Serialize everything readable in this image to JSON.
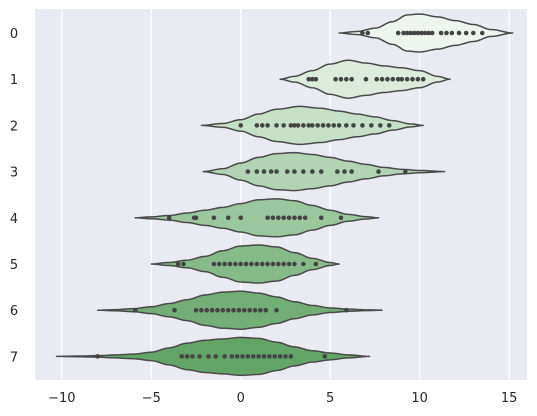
{
  "chart_data": {
    "type": "violin",
    "orientation": "horizontal",
    "inner": "point",
    "title": "",
    "xlabel": "",
    "ylabel": "",
    "xlim": [
      -11.5,
      16.0
    ],
    "xticks": [
      -10,
      -5,
      0,
      5,
      10,
      15
    ],
    "xtick_labels": [
      "−10",
      "−5",
      "0",
      "5",
      "10",
      "15"
    ],
    "grid": true,
    "categories": [
      "0",
      "1",
      "2",
      "3",
      "4",
      "5",
      "6",
      "7"
    ],
    "colors": {
      "background": "#eaeaf2",
      "grid": "#ffffff",
      "edge": "#4a4a4a",
      "points": "#444444",
      "fills": [
        "#eef4ee",
        "#dcebdc",
        "#c7e0c8",
        "#b2d4b4",
        "#9bc79e",
        "#86bb89",
        "#72ae76",
        "#62a566"
      ]
    },
    "series": [
      {
        "category": "0",
        "range": [
          5.5,
          15.2
        ],
        "profile": [
          [
            5.5,
            0.0
          ],
          [
            6.5,
            0.08
          ],
          [
            7.5,
            0.25
          ],
          [
            8.5,
            0.6
          ],
          [
            9.3,
            0.95
          ],
          [
            10.0,
            1.0
          ],
          [
            11.0,
            0.85
          ],
          [
            12.0,
            0.65
          ],
          [
            13.0,
            0.45
          ],
          [
            14.0,
            0.18
          ],
          [
            15.2,
            0.0
          ]
        ],
        "points": [
          6.8,
          7.1,
          8.8,
          9.1,
          9.3,
          9.5,
          9.7,
          9.9,
          10.1,
          10.3,
          10.5,
          10.7,
          11.2,
          11.5,
          11.8,
          12.2,
          12.6,
          13.0,
          13.5
        ]
      },
      {
        "category": "1",
        "range": [
          2.2,
          11.7
        ],
        "profile": [
          [
            2.2,
            0.0
          ],
          [
            3.0,
            0.15
          ],
          [
            4.0,
            0.45
          ],
          [
            5.0,
            0.8
          ],
          [
            6.0,
            1.0
          ],
          [
            7.0,
            0.85
          ],
          [
            8.0,
            0.7
          ],
          [
            9.0,
            0.6
          ],
          [
            10.0,
            0.45
          ],
          [
            11.0,
            0.15
          ],
          [
            11.7,
            0.0
          ]
        ],
        "points": [
          3.8,
          4.0,
          4.2,
          5.3,
          5.6,
          5.9,
          6.2,
          7.0,
          7.6,
          7.9,
          8.2,
          8.5,
          8.8,
          9.0,
          9.3,
          9.6,
          9.9,
          10.2
        ]
      },
      {
        "category": "2",
        "range": [
          -2.2,
          10.2
        ],
        "profile": [
          [
            -2.2,
            0.0
          ],
          [
            -1.0,
            0.1
          ],
          [
            0.0,
            0.3
          ],
          [
            1.0,
            0.6
          ],
          [
            2.0,
            0.85
          ],
          [
            3.3,
            1.0
          ],
          [
            4.5,
            0.9
          ],
          [
            5.5,
            0.75
          ],
          [
            6.5,
            0.6
          ],
          [
            7.5,
            0.45
          ],
          [
            8.5,
            0.25
          ],
          [
            9.5,
            0.08
          ],
          [
            10.2,
            0.0
          ]
        ],
        "points": [
          0.0,
          0.9,
          1.2,
          1.5,
          2.0,
          2.4,
          2.8,
          3.0,
          3.2,
          3.5,
          3.8,
          4.0,
          4.3,
          4.6,
          4.9,
          5.2,
          5.5,
          5.9,
          6.3,
          6.8,
          7.3,
          7.8,
          8.3
        ]
      },
      {
        "category": "3",
        "range": [
          -2.1,
          11.4
        ],
        "profile": [
          [
            -2.1,
            0.0
          ],
          [
            -1.0,
            0.15
          ],
          [
            0.0,
            0.45
          ],
          [
            1.0,
            0.75
          ],
          [
            2.0,
            0.95
          ],
          [
            3.0,
            1.0
          ],
          [
            4.0,
            0.9
          ],
          [
            5.0,
            0.75
          ],
          [
            6.0,
            0.55
          ],
          [
            7.0,
            0.38
          ],
          [
            8.0,
            0.22
          ],
          [
            9.0,
            0.12
          ],
          [
            10.0,
            0.06
          ],
          [
            11.4,
            0.0
          ]
        ],
        "points": [
          0.4,
          0.9,
          1.3,
          1.7,
          2.0,
          2.6,
          3.0,
          3.5,
          4.0,
          4.5,
          5.4,
          5.8,
          6.2,
          7.7,
          9.2
        ]
      },
      {
        "category": "4",
        "range": [
          -5.9,
          7.7
        ],
        "profile": [
          [
            -5.9,
            0.0
          ],
          [
            -5.0,
            0.05
          ],
          [
            -4.0,
            0.12
          ],
          [
            -3.0,
            0.25
          ],
          [
            -2.0,
            0.4
          ],
          [
            -1.0,
            0.55
          ],
          [
            0.0,
            0.75
          ],
          [
            1.0,
            0.95
          ],
          [
            2.0,
            1.0
          ],
          [
            3.0,
            0.9
          ],
          [
            4.0,
            0.65
          ],
          [
            5.0,
            0.4
          ],
          [
            6.0,
            0.18
          ],
          [
            7.0,
            0.06
          ],
          [
            7.7,
            0.0
          ]
        ],
        "points": [
          -4.0,
          -2.6,
          -2.5,
          -1.5,
          -0.7,
          0.0,
          1.5,
          1.8,
          2.1,
          2.4,
          2.7,
          3.0,
          3.3,
          3.6,
          4.5,
          5.6
        ]
      },
      {
        "category": "5",
        "range": [
          -5.0,
          5.5
        ],
        "profile": [
          [
            -5.0,
            0.0
          ],
          [
            -4.0,
            0.08
          ],
          [
            -3.0,
            0.2
          ],
          [
            -2.0,
            0.4
          ],
          [
            -1.0,
            0.7
          ],
          [
            0.0,
            0.95
          ],
          [
            1.0,
            1.0
          ],
          [
            2.0,
            0.9
          ],
          [
            3.0,
            0.6
          ],
          [
            4.0,
            0.3
          ],
          [
            5.0,
            0.08
          ],
          [
            5.5,
            0.0
          ]
        ],
        "points": [
          -3.5,
          -3.2,
          -1.5,
          -1.2,
          -0.9,
          -0.6,
          -0.3,
          0.0,
          0.3,
          0.6,
          0.9,
          1.2,
          1.5,
          1.8,
          2.1,
          2.4,
          2.7,
          3.0,
          3.5,
          4.2
        ]
      },
      {
        "category": "6",
        "range": [
          -8.0,
          7.9
        ],
        "profile": [
          [
            -8.0,
            0.0
          ],
          [
            -7.0,
            0.03
          ],
          [
            -6.0,
            0.08
          ],
          [
            -5.0,
            0.18
          ],
          [
            -4.0,
            0.35
          ],
          [
            -3.0,
            0.55
          ],
          [
            -2.0,
            0.8
          ],
          [
            -1.0,
            0.95
          ],
          [
            0.0,
            1.0
          ],
          [
            1.0,
            0.9
          ],
          [
            2.0,
            0.7
          ],
          [
            3.0,
            0.45
          ],
          [
            4.0,
            0.25
          ],
          [
            5.0,
            0.12
          ],
          [
            6.0,
            0.06
          ],
          [
            7.0,
            0.02
          ],
          [
            7.9,
            0.0
          ]
        ],
        "points": [
          -5.9,
          -3.7,
          -2.5,
          -2.2,
          -1.9,
          -1.6,
          -1.3,
          -1.0,
          -0.7,
          -0.4,
          -0.1,
          0.2,
          0.5,
          0.8,
          1.1,
          1.4,
          2.0,
          5.9
        ]
      },
      {
        "category": "7",
        "range": [
          -10.3,
          7.2
        ],
        "profile": [
          [
            -10.3,
            0.0
          ],
          [
            -9.0,
            0.02
          ],
          [
            -8.0,
            0.04
          ],
          [
            -7.0,
            0.08
          ],
          [
            -6.0,
            0.12
          ],
          [
            -5.0,
            0.22
          ],
          [
            -4.0,
            0.45
          ],
          [
            -3.0,
            0.7
          ],
          [
            -2.0,
            0.85
          ],
          [
            -1.0,
            0.92
          ],
          [
            0.0,
            1.0
          ],
          [
            1.0,
            0.95
          ],
          [
            2.0,
            0.75
          ],
          [
            3.0,
            0.5
          ],
          [
            4.0,
            0.3
          ],
          [
            5.0,
            0.18
          ],
          [
            6.0,
            0.08
          ],
          [
            7.2,
            0.0
          ]
        ],
        "points": [
          -8.0,
          -3.3,
          -3.0,
          -2.7,
          -2.3,
          -1.8,
          -1.4,
          -0.9,
          -0.5,
          -0.2,
          0.1,
          0.4,
          0.7,
          1.0,
          1.3,
          1.6,
          1.9,
          2.2,
          2.5,
          2.8,
          4.7
        ]
      }
    ]
  }
}
